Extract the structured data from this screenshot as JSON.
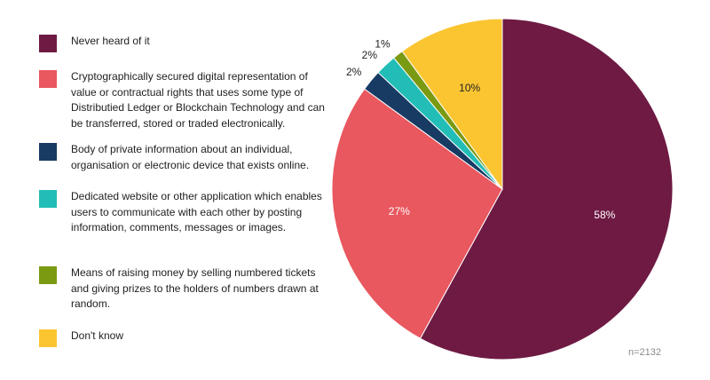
{
  "chart_data": {
    "type": "pie",
    "series": [
      {
        "label": "Never heard of it",
        "value": 58,
        "value_label": "58%",
        "color": "#6e1a43",
        "label_color": "#ffffff"
      },
      {
        "label": "Cryptographically secured digital representation of value or contractual rights that uses some type of Distributied Ledger or Blockchain Technology and can be transferred, stored or traded electronically.",
        "value": 27,
        "value_label": "27%",
        "color": "#e9575f",
        "label_color": "#ffffff"
      },
      {
        "label": "Body of private information about an individual, organisation or electronic device that exists online.",
        "value": 2,
        "value_label": "2%",
        "color": "#173b63",
        "label_color": "#222222"
      },
      {
        "label": "Dedicated website or other application which enables users to communicate with each other by posting information, comments, messages or images.",
        "value": 2,
        "value_label": "2%",
        "color": "#22bdb6",
        "label_color": "#222222"
      },
      {
        "label": "Means of raising money by selling numbered tickets and giving prizes to the holders of numbers drawn at random.",
        "value": 1,
        "value_label": "1%",
        "color": "#7a9a12",
        "label_color": "#222222"
      },
      {
        "label": "Don't know",
        "value": 10,
        "value_label": "10%",
        "color": "#fbc532",
        "label_color": "#222222"
      }
    ],
    "legend_position": "left",
    "start": "12 o'clock, clockwise",
    "note": "n=2132"
  }
}
